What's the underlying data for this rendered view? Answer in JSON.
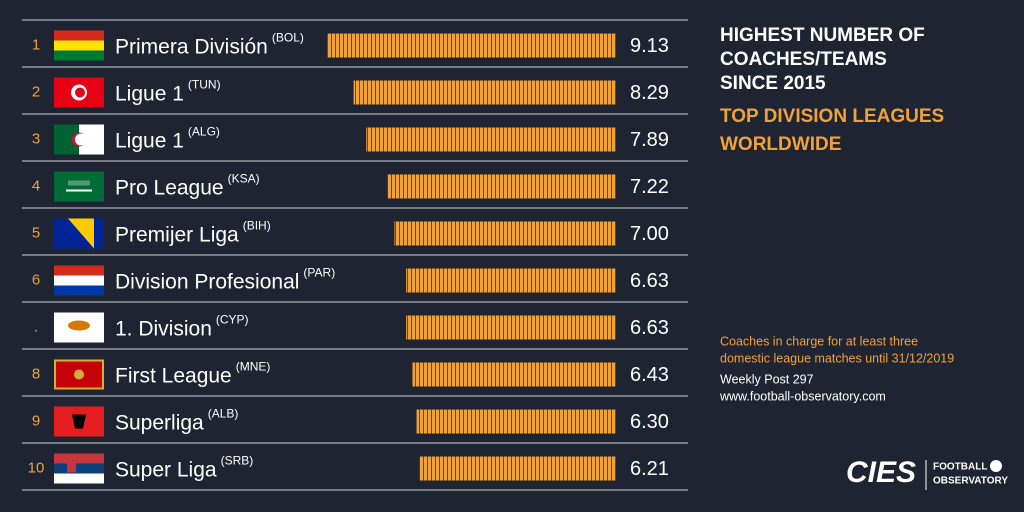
{
  "chart_data": {
    "type": "bar",
    "title": [
      "HIGHEST NUMBER OF",
      "COACHES/TEAMS",
      "SINCE 2015"
    ],
    "subtitle": [
      "TOP DIVISION LEAGUES",
      "WORLDWIDE"
    ],
    "note": [
      "Coaches in charge for at least three",
      "domestic league matches until 31/12/2019"
    ],
    "source": [
      "Weekly Post 297",
      "www.football-observatory.com"
    ],
    "logo": [
      "CIES",
      "FOOTBALL",
      "OBSERVATORY"
    ],
    "ranks": [
      "1",
      "2",
      "3",
      "4",
      "5",
      "6",
      ".",
      "8",
      "9",
      "10"
    ],
    "categories": [
      "Primera División",
      "Ligue 1",
      "Ligue 1",
      "Pro League",
      "Premijer Liga",
      "Division Profesional",
      "1. Division",
      "First League",
      "Superliga",
      "Super Liga"
    ],
    "codes": [
      "(BOL)",
      "(TUN)",
      "(ALG)",
      "(KSA)",
      "(BIH)",
      "(PAR)",
      "(CYP)",
      "(MNE)",
      "(ALB)",
      "(SRB)"
    ],
    "values": [
      9.13,
      8.29,
      7.89,
      7.22,
      7.0,
      6.63,
      6.63,
      6.43,
      6.3,
      6.21
    ],
    "value_labels": [
      "9.13",
      "8.29",
      "7.89",
      "7.22",
      "7.00",
      "6.63",
      "6.63",
      "6.43",
      "6.30",
      "6.21"
    ],
    "color": "#f0a23a"
  }
}
